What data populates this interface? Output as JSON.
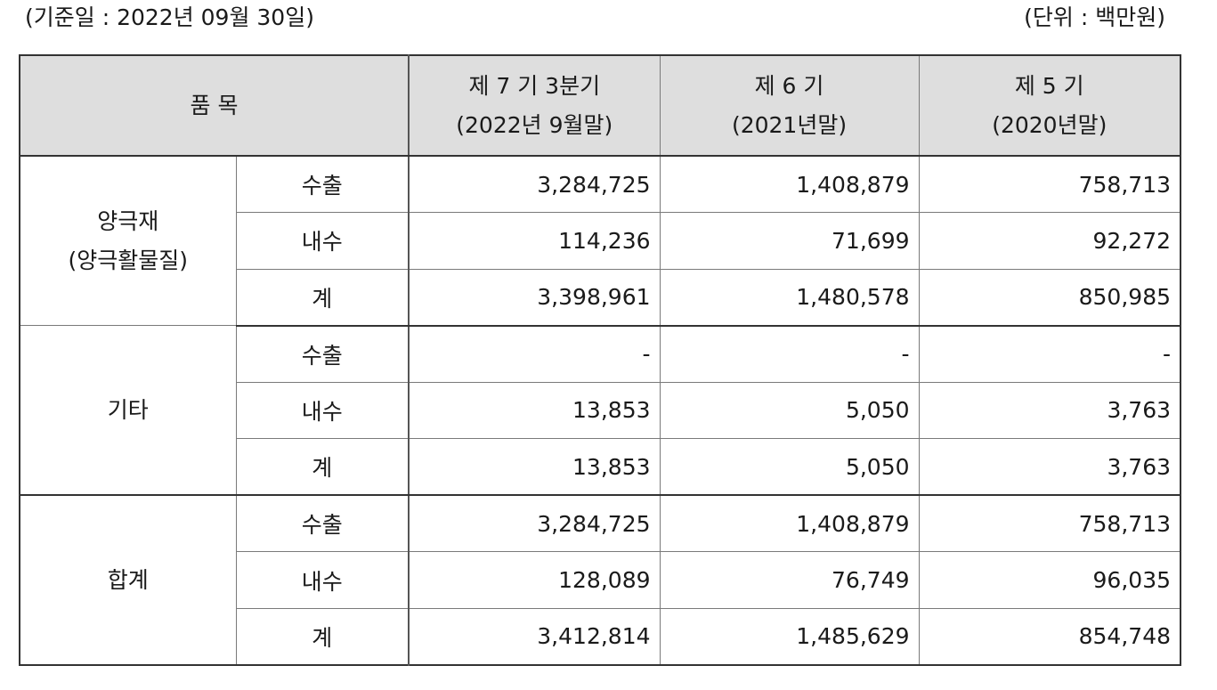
{
  "caption": {
    "basis_date": "(기준일 : 2022년 09월 30일)",
    "unit": "(단위 : 백만원)"
  },
  "header": {
    "item": "품  목",
    "periods": [
      {
        "line1": "제 7 기 3분기",
        "line2": "(2022년 9월말)"
      },
      {
        "line1": "제 6 기",
        "line2": "(2021년말)"
      },
      {
        "line1": "제 5 기",
        "line2": "(2020년말)"
      }
    ]
  },
  "groups": [
    {
      "name_line1": "양극재",
      "name_line2": "(양극활물질)",
      "rows": [
        {
          "label": "수출",
          "values": [
            "3,284,725",
            "1,408,879",
            "758,713"
          ]
        },
        {
          "label": "내수",
          "values": [
            "114,236",
            "71,699",
            "92,272"
          ]
        },
        {
          "label": "계",
          "values": [
            "3,398,961",
            "1,480,578",
            "850,985"
          ]
        }
      ]
    },
    {
      "name_line1": "기타",
      "name_line2": "",
      "rows": [
        {
          "label": "수출",
          "values": [
            "-",
            "-",
            "-"
          ]
        },
        {
          "label": "내수",
          "values": [
            "13,853",
            "5,050",
            "3,763"
          ]
        },
        {
          "label": "계",
          "values": [
            "13,853",
            "5,050",
            "3,763"
          ]
        }
      ]
    },
    {
      "name_line1": "합계",
      "name_line2": "",
      "rows": [
        {
          "label": "수출",
          "values": [
            "3,284,725",
            "1,408,879",
            "758,713"
          ]
        },
        {
          "label": "내수",
          "values": [
            "128,089",
            "76,749",
            "96,035"
          ]
        },
        {
          "label": "계",
          "values": [
            "3,412,814",
            "1,485,629",
            "854,748"
          ]
        }
      ]
    }
  ]
}
